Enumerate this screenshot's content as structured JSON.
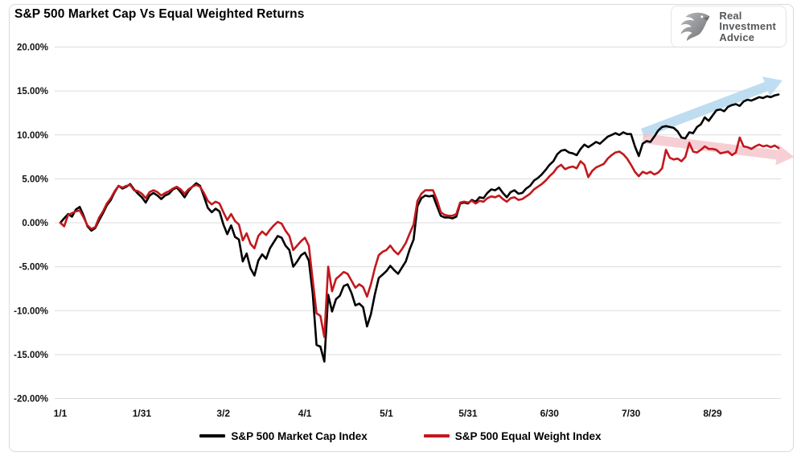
{
  "title": "S&P 500 Market Cap Vs Equal Weighted Returns",
  "logo": {
    "line1": "Real",
    "line2": "Investment",
    "line3": "Advice"
  },
  "chart_data": {
    "type": "line",
    "title": "S&P 500 Market Cap Vs Equal Weighted Returns",
    "xlabel": "",
    "ylabel": "",
    "ylim": [
      -20,
      20
    ],
    "grid": true,
    "grid_color": "#dcdcdc",
    "tick_label_color": "#111111",
    "legend_position": "bottom",
    "y_ticks": [
      {
        "value": 20,
        "label": "20.00%"
      },
      {
        "value": 15,
        "label": "15.00%"
      },
      {
        "value": 10,
        "label": "10.00%"
      },
      {
        "value": 5,
        "label": "5.00%"
      },
      {
        "value": 0,
        "label": "0.00%"
      },
      {
        "value": -5,
        "label": "-5.00%"
      },
      {
        "value": -10,
        "label": "-10.00%"
      },
      {
        "value": -15,
        "label": "-15.00%"
      },
      {
        "value": -20,
        "label": "-20.00%"
      }
    ],
    "x_ticks": [
      {
        "day": 0,
        "label": "1/1"
      },
      {
        "day": 21,
        "label": "1/31"
      },
      {
        "day": 42,
        "label": "3/2"
      },
      {
        "day": 63,
        "label": "4/1"
      },
      {
        "day": 84,
        "label": "5/1"
      },
      {
        "day": 105,
        "label": "5/31"
      },
      {
        "day": 126,
        "label": "6/30"
      },
      {
        "day": 147,
        "label": "7/30"
      },
      {
        "day": 168,
        "label": "8/29"
      }
    ],
    "series": [
      {
        "name": "S&P 500 Market Cap Index",
        "color": "#000000",
        "line_width": 2.6,
        "values": [
          0.0,
          0.5,
          1.0,
          0.7,
          1.5,
          1.8,
          0.8,
          -0.4,
          -0.9,
          -0.6,
          0.3,
          1.1,
          2.0,
          2.6,
          3.5,
          4.2,
          3.9,
          4.1,
          4.4,
          3.8,
          3.3,
          2.9,
          2.3,
          3.1,
          3.4,
          3.1,
          2.7,
          3.1,
          3.3,
          3.8,
          4.0,
          3.5,
          2.9,
          3.6,
          4.1,
          4.5,
          4.2,
          3.0,
          1.7,
          1.2,
          1.6,
          1.3,
          -0.2,
          -1.3,
          -0.3,
          -1.6,
          -1.9,
          -4.4,
          -3.5,
          -5.2,
          -6.0,
          -4.3,
          -3.6,
          -4.1,
          -2.9,
          -2.2,
          -1.5,
          -1.7,
          -2.6,
          -3.1,
          -5.0,
          -4.4,
          -3.7,
          -3.4,
          -4.3,
          -8.0,
          -13.9,
          -14.1,
          -15.8,
          -8.2,
          -10.1,
          -8.7,
          -8.3,
          -7.2,
          -7.0,
          -8.0,
          -9.4,
          -9.2,
          -9.6,
          -11.8,
          -10.4,
          -8.2,
          -6.3,
          -5.9,
          -5.5,
          -4.9,
          -5.4,
          -5.8,
          -5.1,
          -4.4,
          -3.0,
          -1.9,
          1.9,
          2.8,
          3.1,
          3.0,
          3.1,
          1.9,
          0.8,
          0.6,
          0.6,
          0.5,
          0.7,
          2.2,
          2.3,
          2.2,
          2.6,
          2.4,
          2.9,
          2.8,
          3.4,
          3.8,
          3.7,
          4.0,
          3.4,
          2.9,
          3.5,
          3.7,
          3.3,
          3.4,
          3.9,
          4.2,
          4.8,
          5.1,
          5.5,
          6.0,
          6.6,
          7.0,
          7.8,
          8.2,
          8.3,
          8.0,
          7.9,
          7.7,
          8.4,
          8.9,
          8.6,
          8.9,
          9.2,
          9.0,
          9.4,
          9.8,
          10.0,
          10.2,
          10.0,
          10.3,
          10.1,
          10.1,
          8.7,
          7.6,
          9.0,
          9.3,
          9.2,
          9.8,
          10.5,
          10.9,
          11.0,
          10.9,
          10.8,
          10.4,
          9.7,
          9.6,
          10.3,
          10.2,
          10.9,
          11.2,
          12.0,
          11.6,
          12.2,
          12.8,
          12.9,
          12.7,
          13.2,
          13.4,
          13.5,
          13.3,
          13.8,
          14.0,
          13.9,
          14.1,
          14.3,
          14.2,
          14.4,
          14.3,
          14.5,
          14.6
        ]
      },
      {
        "name": "S&P 500 Equal Weight Index",
        "color": "#c2181e",
        "line_width": 2.6,
        "values": [
          0.0,
          -0.4,
          0.9,
          1.1,
          1.3,
          1.4,
          0.6,
          -0.3,
          -0.7,
          -0.5,
          0.6,
          1.3,
          2.2,
          2.8,
          3.6,
          4.2,
          4.0,
          4.2,
          4.3,
          3.7,
          3.6,
          3.3,
          2.8,
          3.5,
          3.7,
          3.5,
          3.1,
          3.4,
          3.6,
          3.9,
          4.1,
          3.8,
          3.3,
          3.8,
          4.1,
          4.3,
          4.1,
          3.4,
          2.5,
          2.1,
          2.4,
          2.2,
          1.2,
          0.3,
          1.0,
          0.2,
          -0.2,
          -2.0,
          -1.2,
          -2.4,
          -2.9,
          -1.5,
          -1.0,
          -1.4,
          -0.8,
          -0.3,
          0.1,
          -0.1,
          -0.9,
          -1.5,
          -3.1,
          -2.6,
          -2.1,
          -1.7,
          -2.6,
          -6.5,
          -10.3,
          -10.6,
          -13.0,
          -5.0,
          -7.8,
          -6.4,
          -6.0,
          -5.6,
          -5.8,
          -6.6,
          -7.4,
          -7.0,
          -7.3,
          -8.4,
          -7.0,
          -5.2,
          -3.7,
          -3.3,
          -3.1,
          -2.6,
          -3.2,
          -3.6,
          -3.0,
          -2.3,
          -1.2,
          -0.2,
          2.5,
          3.3,
          3.7,
          3.7,
          3.7,
          2.6,
          1.2,
          0.9,
          0.8,
          0.8,
          1.0,
          2.3,
          2.4,
          2.3,
          2.5,
          2.2,
          2.5,
          2.4,
          2.8,
          3.0,
          2.9,
          3.1,
          2.7,
          2.4,
          2.8,
          2.9,
          2.6,
          2.7,
          3.0,
          3.3,
          3.8,
          4.1,
          4.4,
          4.8,
          5.3,
          5.7,
          6.3,
          6.6,
          6.1,
          6.3,
          6.4,
          6.2,
          7.0,
          6.6,
          5.2,
          5.9,
          6.3,
          6.5,
          6.7,
          7.3,
          7.7,
          8.0,
          8.1,
          7.8,
          7.3,
          6.6,
          5.8,
          5.3,
          5.8,
          5.6,
          5.8,
          5.5,
          5.7,
          6.2,
          8.3,
          7.4,
          7.2,
          7.3,
          7.0,
          7.5,
          9.1,
          8.1,
          8.0,
          8.3,
          8.7,
          8.4,
          8.4,
          8.3,
          7.9,
          8.0,
          8.1,
          7.7,
          8.0,
          9.7,
          8.7,
          8.6,
          8.4,
          8.7,
          8.9,
          8.7,
          8.8,
          8.6,
          8.8,
          8.5
        ]
      }
    ],
    "annotations": {
      "arrows": [
        {
          "id": "uptrend-arrow",
          "color": "#b5d8ee",
          "opacity": 0.85,
          "width": 12,
          "from": {
            "day": 150,
            "value": 10.2
          },
          "to": {
            "day": 186,
            "value": 16.2
          }
        },
        {
          "id": "downtrend-arrow",
          "color": "#f5c4cb",
          "opacity": 0.8,
          "width": 12,
          "from": {
            "day": 150,
            "value": 9.6
          },
          "to": {
            "day": 189,
            "value": 7.5
          }
        }
      ]
    }
  }
}
